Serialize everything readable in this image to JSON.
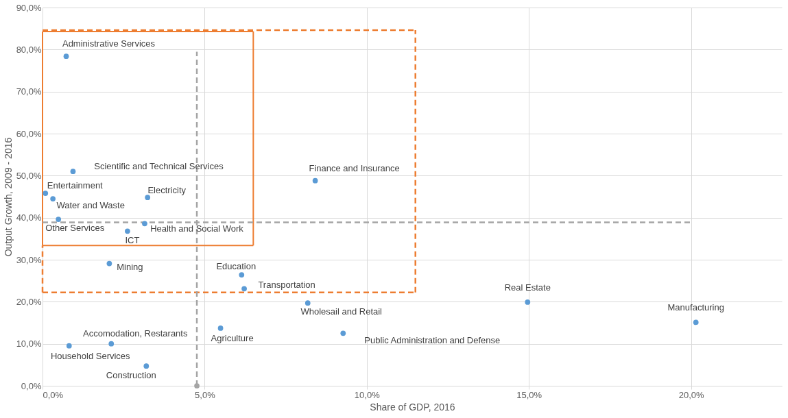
{
  "chart_data": {
    "type": "scatter",
    "xlabel": "Share of GDP, 2016",
    "ylabel": "Output Growth, 2009 - 2016",
    "xlim": [
      0,
      22.8
    ],
    "ylim": [
      0,
      90
    ],
    "xticks": [
      {
        "value": 0,
        "label": "0,0%"
      },
      {
        "value": 5,
        "label": "5,0%"
      },
      {
        "value": 10,
        "label": "10,0%"
      },
      {
        "value": 15,
        "label": "15,0%"
      },
      {
        "value": 20,
        "label": "20,0%"
      }
    ],
    "yticks": [
      {
        "value": 0,
        "label": "0,0%"
      },
      {
        "value": 10,
        "label": "10,0%"
      },
      {
        "value": 20,
        "label": "20,0%"
      },
      {
        "value": 30,
        "label": "30,0%"
      },
      {
        "value": 40,
        "label": "40,0%"
      },
      {
        "value": 50,
        "label": "50,0%"
      },
      {
        "value": 60,
        "label": "60,0%"
      },
      {
        "value": 70,
        "label": "70,0%"
      },
      {
        "value": 80,
        "label": "80,0%"
      },
      {
        "value": 90,
        "label": "90,0%"
      }
    ],
    "grid": true,
    "marker": "circle",
    "series": [
      {
        "type": "line",
        "marker": "none",
        "color": "#ed7d31",
        "line_style": "dashed",
        "x": [
          0,
          11.5
        ],
        "values": [
          84.6,
          84.6
        ]
      },
      {
        "type": "line",
        "marker": "none",
        "color": "#ed7d31",
        "line_style": "dashed",
        "x": [
          0,
          0
        ],
        "values": [
          22.2,
          33.4
        ]
      },
      {
        "type": "line",
        "marker": "none",
        "color": "#ed7d31",
        "line_style": "dashed",
        "x": [
          11.5,
          11.5
        ],
        "values": [
          22.2,
          84.6
        ]
      },
      {
        "type": "line",
        "marker": "none",
        "color": "#ed7d31",
        "line_style": "dashed",
        "x": [
          0,
          11.5
        ],
        "values": [
          22.2,
          22.2
        ]
      },
      {
        "type": "line",
        "marker": "none",
        "color": "#ed7d31",
        "line_style": "solid",
        "x": [
          0,
          6.5
        ],
        "values": [
          84.3,
          84.3
        ]
      },
      {
        "type": "line",
        "marker": "none",
        "color": "#ed7d31",
        "line_style": "solid",
        "x": [
          0,
          0
        ],
        "values": [
          33.4,
          84.3
        ]
      },
      {
        "type": "line",
        "marker": "none",
        "color": "#ed7d31",
        "line_style": "solid",
        "x": [
          6.5,
          6.5
        ],
        "values": [
          33.4,
          84.3
        ]
      },
      {
        "type": "line",
        "marker": "none",
        "color": "#ed7d31",
        "line_style": "solid",
        "x": [
          0,
          6.5
        ],
        "values": [
          33.4,
          33.4
        ]
      },
      {
        "type": "line",
        "marker": "none",
        "color": "#a5a5a5",
        "line_style": "dashed",
        "x": [
          4.76,
          4.76
        ],
        "values": [
          0,
          79.5
        ]
      },
      {
        "type": "line",
        "marker": "none",
        "color": "#a5a5a5",
        "line_style": "dashed",
        "x": [
          0,
          20
        ],
        "values": [
          38.9,
          38.9
        ]
      },
      {
        "color": "#a5a5a5",
        "x": [
          4.76
        ],
        "values": [
          0
        ]
      },
      {
        "color": "#5b9bd5",
        "x": [
          0.73,
          0.94,
          0.09,
          0.32,
          0.49,
          3.24,
          3.15,
          2.62,
          2.06,
          8.41,
          6.14,
          6.22,
          8.18,
          14.96,
          20.15,
          5.49,
          9.27,
          2.12,
          0.82,
          3.2
        ],
        "values": [
          78.4,
          51.0,
          45.8,
          44.5,
          39.6,
          44.8,
          38.6,
          36.8,
          29.1,
          48.8,
          26.4,
          23.1,
          19.7,
          19.9,
          15.1,
          13.7,
          12.5,
          10.0,
          9.5,
          4.7
        ]
      }
    ],
    "annotations": [
      {
        "text": "Administrative Services",
        "x": 0.73,
        "y": 78.4
      },
      {
        "text": "Scientific and Technical Services",
        "x": 0.94,
        "y": 51.0
      },
      {
        "text": "Entertainment",
        "x": 0.09,
        "y": 45.8
      },
      {
        "text": "Water and Waste",
        "x": 0.32,
        "y": 44.5
      },
      {
        "text": "Other Services",
        "x": 0.49,
        "y": 39.6
      },
      {
        "text": "Electricity",
        "x": 3.24,
        "y": 44.8
      },
      {
        "text": "Health and Social Work",
        "x": 3.15,
        "y": 38.6
      },
      {
        "text": "ICT",
        "x": 2.62,
        "y": 36.8
      },
      {
        "text": "Mining",
        "x": 2.06,
        "y": 29.1
      },
      {
        "text": "Finance and Insurance",
        "x": 8.41,
        "y": 48.8
      },
      {
        "text": "Education",
        "x": 6.14,
        "y": 26.4
      },
      {
        "text": "Transportation",
        "x": 6.22,
        "y": 23.1
      },
      {
        "text": "Wholesail and Retail",
        "x": 8.18,
        "y": 19.7
      },
      {
        "text": "Real Estate",
        "x": 14.96,
        "y": 19.9
      },
      {
        "text": "Manufacturing",
        "x": 20.15,
        "y": 15.1
      },
      {
        "text": "Agriculture",
        "x": 5.49,
        "y": 13.7
      },
      {
        "text": "Public Administration and Defense",
        "x": 9.27,
        "y": 12.5
      },
      {
        "text": "Accomodation, Restarants",
        "x": 2.12,
        "y": 10.0
      },
      {
        "text": "Household Services",
        "x": 0.82,
        "y": 9.5
      },
      {
        "text": "Construction",
        "x": 3.2,
        "y": 4.7
      }
    ]
  }
}
